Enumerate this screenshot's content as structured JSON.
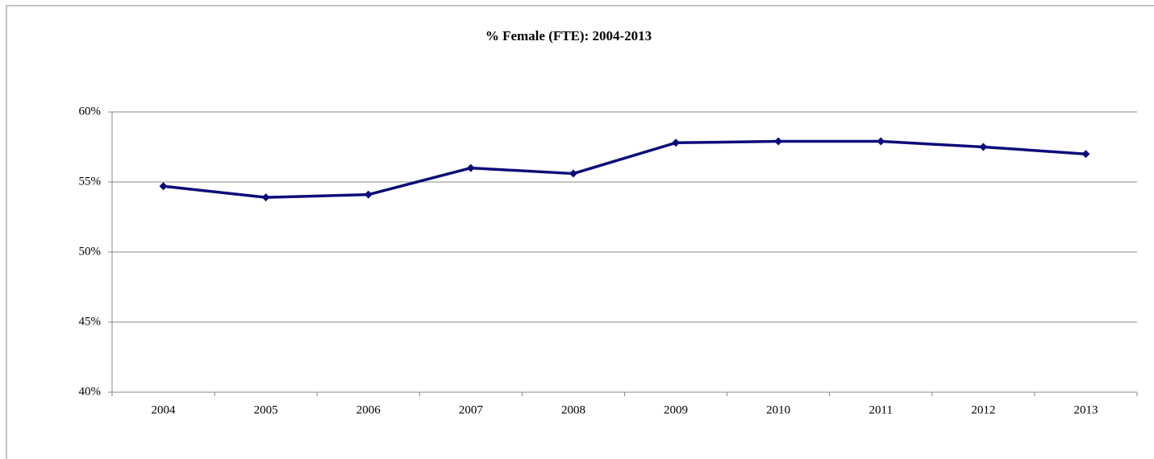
{
  "chart_data": {
    "type": "line",
    "title": "% Female (FTE): 2004-2013",
    "categories": [
      "2004",
      "2005",
      "2006",
      "2007",
      "2008",
      "2009",
      "2010",
      "2011",
      "2012",
      "2013"
    ],
    "series": [
      {
        "name": "% Female (FTE)",
        "color": "#0c0c7a",
        "values": [
          54.7,
          53.9,
          54.1,
          56.0,
          55.6,
          57.8,
          57.9,
          57.9,
          57.5,
          57.0
        ]
      }
    ],
    "ylim": [
      40,
      60
    ],
    "yticks": [
      {
        "value": 40,
        "label": "40%"
      },
      {
        "value": 45,
        "label": "45%"
      },
      {
        "value": 50,
        "label": "50%"
      },
      {
        "value": 55,
        "label": "55%"
      },
      {
        "value": 60,
        "label": "60%"
      }
    ],
    "grid": true
  }
}
